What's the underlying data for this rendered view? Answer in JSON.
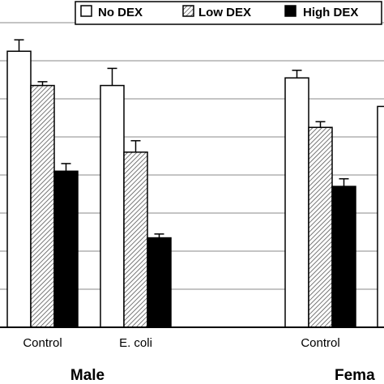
{
  "chart_data": {
    "type": "bar",
    "title": "",
    "xlabel": "",
    "ylabel": "",
    "ylim": [
      0,
      100
    ],
    "grid": true,
    "legend_position": "top-right",
    "groups": [
      {
        "name": "Male",
        "categories": [
          "Control",
          "E. coli"
        ]
      },
      {
        "name": "Fema",
        "categories": [
          "Control",
          ""
        ]
      }
    ],
    "categories": [
      "Control",
      "E. coli",
      "Control",
      ""
    ],
    "series": [
      {
        "name": "No DEX",
        "pattern": "none",
        "values": [
          72.5,
          63.5,
          65.5,
          58
        ],
        "errors": [
          3,
          4.5,
          2,
          null
        ]
      },
      {
        "name": "Low DEX",
        "pattern": "hatched",
        "values": [
          63.5,
          46,
          52.5,
          null
        ],
        "errors": [
          1,
          3,
          1.5,
          null
        ]
      },
      {
        "name": "High DEX",
        "pattern": "solid",
        "values": [
          41,
          23.5,
          37,
          null
        ],
        "errors": [
          2,
          1,
          2,
          null
        ]
      }
    ],
    "colors": {
      "bar_stroke": "#000000",
      "solid_fill": "#000000",
      "hatch": "#555555",
      "grid": "#888888"
    }
  }
}
